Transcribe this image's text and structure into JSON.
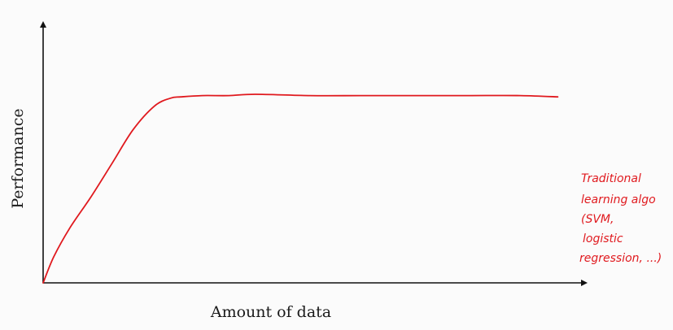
{
  "chart_data": {
    "type": "line",
    "title": "",
    "xlabel": "Amount of data",
    "ylabel": "Performance",
    "xlim": [
      0,
      100
    ],
    "ylim": [
      0,
      100
    ],
    "grid": false,
    "series": [
      {
        "name": "",
        "color": "#e0191e",
        "x": [
          0,
          2,
          5,
          9,
          13,
          17,
          21,
          24,
          26,
          30,
          35,
          40,
          50,
          60,
          70,
          80,
          90,
          97
        ],
        "y": [
          0,
          10,
          21,
          33,
          46,
          59,
          68,
          71,
          71.5,
          72,
          72,
          72.5,
          72,
          72,
          72,
          72,
          72,
          71.5
        ]
      }
    ],
    "annotations": [
      {
        "series_index": 0,
        "lines": [
          "Traditional",
          "learning algo",
          "(SVM,",
          "logistic",
          "regression, ...)"
        ]
      }
    ]
  }
}
